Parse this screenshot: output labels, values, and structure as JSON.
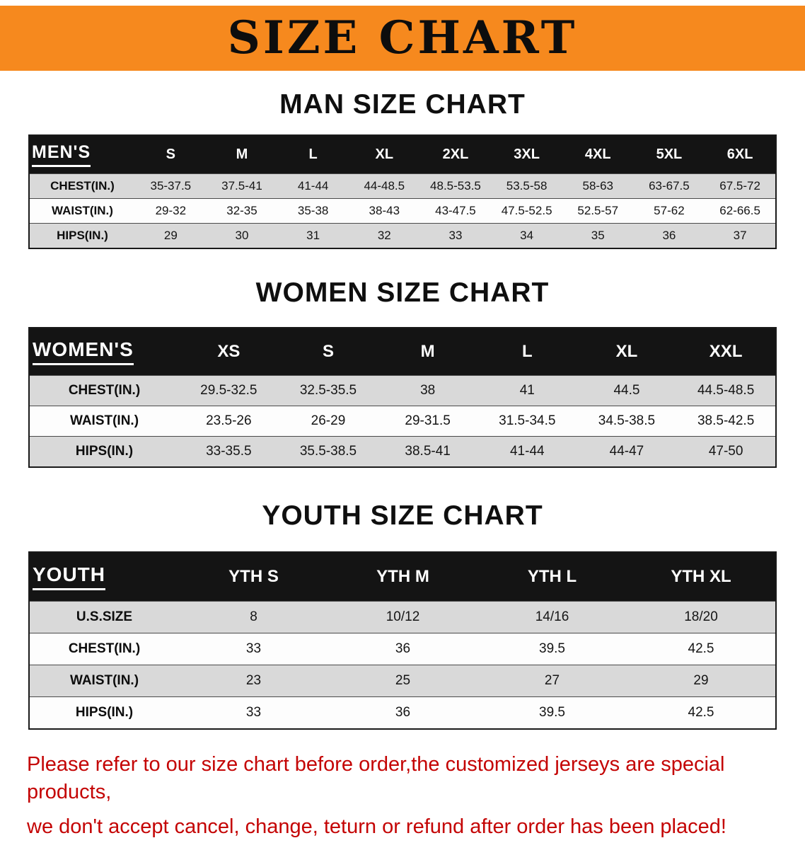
{
  "banner": {
    "title": "SIZE CHART"
  },
  "colors": {
    "banner_bg": "#F6891E",
    "banner_text": "#0D0D0D",
    "table_header_bg": "#141414",
    "table_header_text": "#FFFFFF",
    "row_stripe_gray": "#D9D9D9",
    "row_stripe_white": "#FDFDFD",
    "disclaimer_text": "#C40404"
  },
  "sections": [
    {
      "heading": "MAN SIZE CHART",
      "table": {
        "header": [
          "MEN'S",
          "S",
          "M",
          "L",
          "XL",
          "2XL",
          "3XL",
          "4XL",
          "5XL",
          "6XL"
        ],
        "rows": [
          {
            "label": "CHEST(IN.)",
            "values": [
              "35-37.5",
              "37.5-41",
              "41-44",
              "44-48.5",
              "48.5-53.5",
              "53.5-58",
              "58-63",
              "63-67.5",
              "67.5-72"
            ]
          },
          {
            "label": "WAIST(IN.)",
            "values": [
              "29-32",
              "32-35",
              "35-38",
              "38-43",
              "43-47.5",
              "47.5-52.5",
              "52.5-57",
              "57-62",
              "62-66.5"
            ]
          },
          {
            "label": "HIPS(IN.)",
            "values": [
              "29",
              "30",
              "31",
              "32",
              "33",
              "34",
              "35",
              "36",
              "37"
            ]
          }
        ]
      }
    },
    {
      "heading": "WOMEN SIZE CHART",
      "table": {
        "header": [
          "WOMEN'S",
          "XS",
          "S",
          "M",
          "L",
          "XL",
          "XXL"
        ],
        "rows": [
          {
            "label": "CHEST(IN.)",
            "values": [
              "29.5-32.5",
              "32.5-35.5",
              "38",
              "41",
              "44.5",
              "44.5-48.5"
            ]
          },
          {
            "label": "WAIST(IN.)",
            "values": [
              "23.5-26",
              "26-29",
              "29-31.5",
              "31.5-34.5",
              "34.5-38.5",
              "38.5-42.5"
            ]
          },
          {
            "label": "HIPS(IN.)",
            "values": [
              "33-35.5",
              "35.5-38.5",
              "38.5-41",
              "41-44",
              "44-47",
              "47-50"
            ]
          }
        ]
      }
    },
    {
      "heading": "YOUTH SIZE CHART",
      "table": {
        "header": [
          "YOUTH",
          "YTH S",
          "YTH M",
          "YTH L",
          "YTH XL"
        ],
        "rows": [
          {
            "label": "U.S.SIZE",
            "values": [
              "8",
              "10/12",
              "14/16",
              "18/20"
            ]
          },
          {
            "label": "CHEST(IN.)",
            "values": [
              "33",
              "36",
              "39.5",
              "42.5"
            ]
          },
          {
            "label": "WAIST(IN.)",
            "values": [
              "23",
              "25",
              "27",
              "29"
            ]
          },
          {
            "label": "HIPS(IN.)",
            "values": [
              "33",
              "36",
              "39.5",
              "42.5"
            ]
          }
        ]
      }
    }
  ],
  "disclaimer": {
    "line1": "Please refer to our size chart before order,the customized jerseys are special products,",
    "line2": "we don't accept cancel, change, teturn or refund after order has been placed!"
  }
}
